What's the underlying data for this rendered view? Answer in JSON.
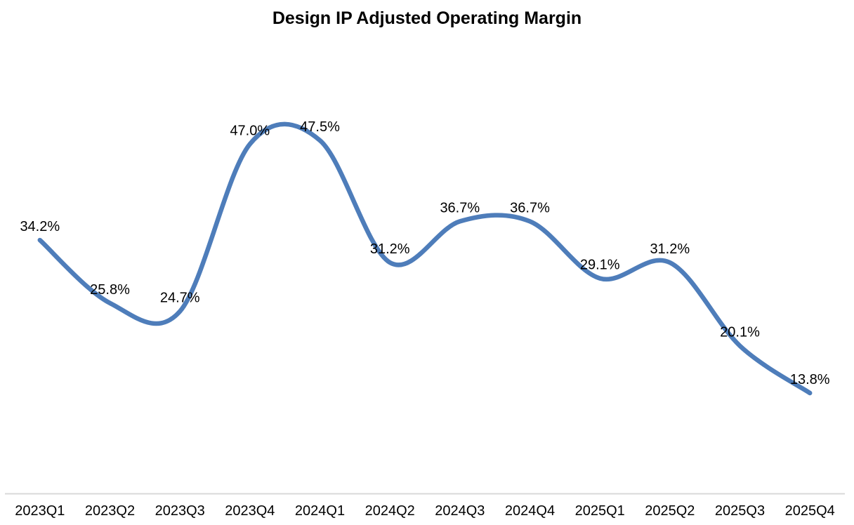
{
  "chart_data": {
    "type": "line",
    "title": "Design IP Adjusted Operating Margin",
    "categories": [
      "2023Q1",
      "2023Q2",
      "2023Q3",
      "2023Q4",
      "2024Q1",
      "2024Q2",
      "2024Q3",
      "2024Q4",
      "2025Q1",
      "2025Q2",
      "2025Q3",
      "2025Q4"
    ],
    "values": [
      34.2,
      25.8,
      24.7,
      47.0,
      47.5,
      31.2,
      36.7,
      36.7,
      29.1,
      31.2,
      20.1,
      13.8
    ],
    "data_labels": [
      "34.2%",
      "25.8%",
      "24.7%",
      "47.0%",
      "47.5%",
      "31.2%",
      "36.7%",
      "36.7%",
      "29.1%",
      "31.2%",
      "20.1%",
      "13.8%"
    ],
    "xlabel": "",
    "ylabel": "",
    "ylim": [
      13.8,
      47.5
    ],
    "grid": false,
    "legend": "none",
    "smooth": true,
    "colors": {
      "line": "#4E7DBA",
      "axis_line": "#D9D9D9",
      "text": "#000000",
      "background": "#FFFFFF"
    }
  }
}
